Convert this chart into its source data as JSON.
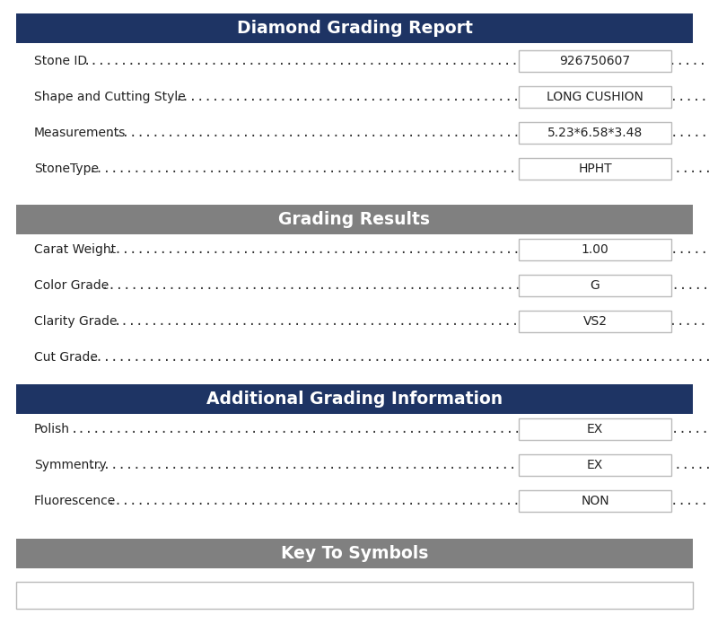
{
  "title": "Diamond Grading Report",
  "title_bg": "#1e3464",
  "title_color": "#ffffff",
  "section2_title": "Grading Results",
  "section2_bg": "#808080",
  "section3_title": "Additional Grading Information",
  "section3_bg": "#1e3464",
  "section4_title": "Key To Symbols",
  "section4_bg": "#808080",
  "bg_color": "#ffffff",
  "text_color": "#222222",
  "box_border": "#aaaaaa",
  "section1_rows": [
    {
      "label": "Stone ID",
      "value": "926750607"
    },
    {
      "label": "Shape and Cutting Style",
      "value": "LONG CUSHION"
    },
    {
      "label": "Measurements",
      "value": "5.23*6.58*3.48"
    },
    {
      "label": "StoneType",
      "value": "HPHT"
    }
  ],
  "section2_rows": [
    {
      "label": "Carat Weight",
      "value": "1.00"
    },
    {
      "label": "Color Grade",
      "value": "G"
    },
    {
      "label": "Clarity Grade",
      "value": "VS2"
    },
    {
      "label": "Cut Grade",
      "value": null
    }
  ],
  "section3_rows": [
    {
      "label": "Polish",
      "value": "EX"
    },
    {
      "label": "Symmentry",
      "value": "EX"
    },
    {
      "label": "Fluorescence",
      "value": "NON"
    }
  ]
}
